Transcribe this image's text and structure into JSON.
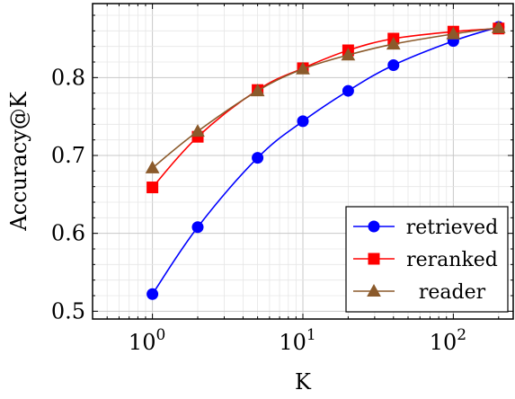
{
  "chart_data": {
    "type": "line",
    "title": "",
    "xlabel": "K",
    "ylabel": "Accuracy@K",
    "xscale": "log",
    "x": [
      1,
      2,
      5,
      10,
      20,
      40,
      100,
      200
    ],
    "xlim": [
      0.4,
      250
    ],
    "ylim": [
      0.49,
      0.895
    ],
    "xticks": [
      1,
      10,
      100
    ],
    "xtick_labels": [
      {
        "base": "10",
        "exp": "0"
      },
      {
        "base": "10",
        "exp": "1"
      },
      {
        "base": "10",
        "exp": "2"
      }
    ],
    "yticks": [
      0.5,
      0.6,
      0.7,
      0.8
    ],
    "ytick_labels": [
      "0.5",
      "0.6",
      "0.7",
      "0.8"
    ],
    "grid": true,
    "legend_position": "bottom-right",
    "series": [
      {
        "name": "retrieved",
        "color": "#0000ff",
        "marker": "circle",
        "values": [
          0.522,
          0.608,
          0.697,
          0.744,
          0.783,
          0.816,
          0.847,
          0.865
        ]
      },
      {
        "name": "reranked",
        "color": "#ff0000",
        "marker": "square",
        "values": [
          0.659,
          0.724,
          0.784,
          0.812,
          0.835,
          0.85,
          0.859,
          0.863
        ]
      },
      {
        "name": "reader",
        "color": "#8b5a2b",
        "marker": "triangle",
        "values": [
          0.684,
          0.731,
          0.783,
          0.811,
          0.829,
          0.843,
          0.856,
          0.864
        ]
      }
    ]
  }
}
